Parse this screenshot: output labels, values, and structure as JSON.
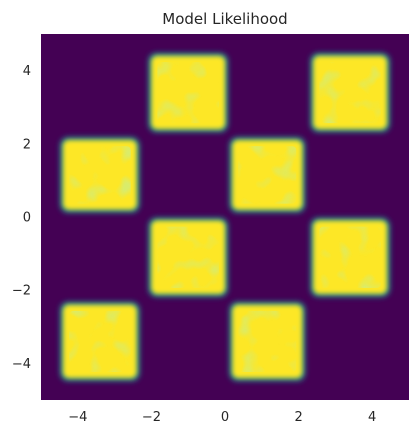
{
  "chart_data": {
    "type": "heatmap",
    "title": "Model Likelihood",
    "xlabel": "",
    "ylabel": "",
    "xlim": [
      -5,
      5
    ],
    "ylim": [
      -5,
      5
    ],
    "x_ticks": [
      -4,
      -2,
      0,
      2,
      4
    ],
    "y_ticks": [
      -4,
      -2,
      0,
      2,
      4
    ],
    "x_tick_labels": [
      "−4",
      "−2",
      "0",
      "2",
      "4"
    ],
    "y_tick_labels": [
      "−4",
      "−2",
      "0",
      "2",
      "4"
    ],
    "grid": false,
    "colormap": "viridis",
    "background_color": "#440154",
    "high_color": "#fde725",
    "mid_color": "#21918c",
    "squares": [
      {
        "x": [
          -2,
          0
        ],
        "y": [
          2.4,
          4.4
        ]
      },
      {
        "x": [
          2.4,
          4.4
        ],
        "y": [
          2.4,
          4.4
        ]
      },
      {
        "x": [
          -4.4,
          -2.4
        ],
        "y": [
          0.2,
          2.1
        ]
      },
      {
        "x": [
          0.2,
          2.1
        ],
        "y": [
          0.2,
          2.1
        ]
      },
      {
        "x": [
          -2,
          0
        ],
        "y": [
          -2.1,
          -0.1
        ]
      },
      {
        "x": [
          2.4,
          4.4
        ],
        "y": [
          -2.1,
          -0.1
        ]
      },
      {
        "x": [
          -4.4,
          -2.4
        ],
        "y": [
          -4.4,
          -2.4
        ]
      },
      {
        "x": [
          0.2,
          2.1
        ],
        "y": [
          -4.4,
          -2.4
        ]
      }
    ]
  }
}
